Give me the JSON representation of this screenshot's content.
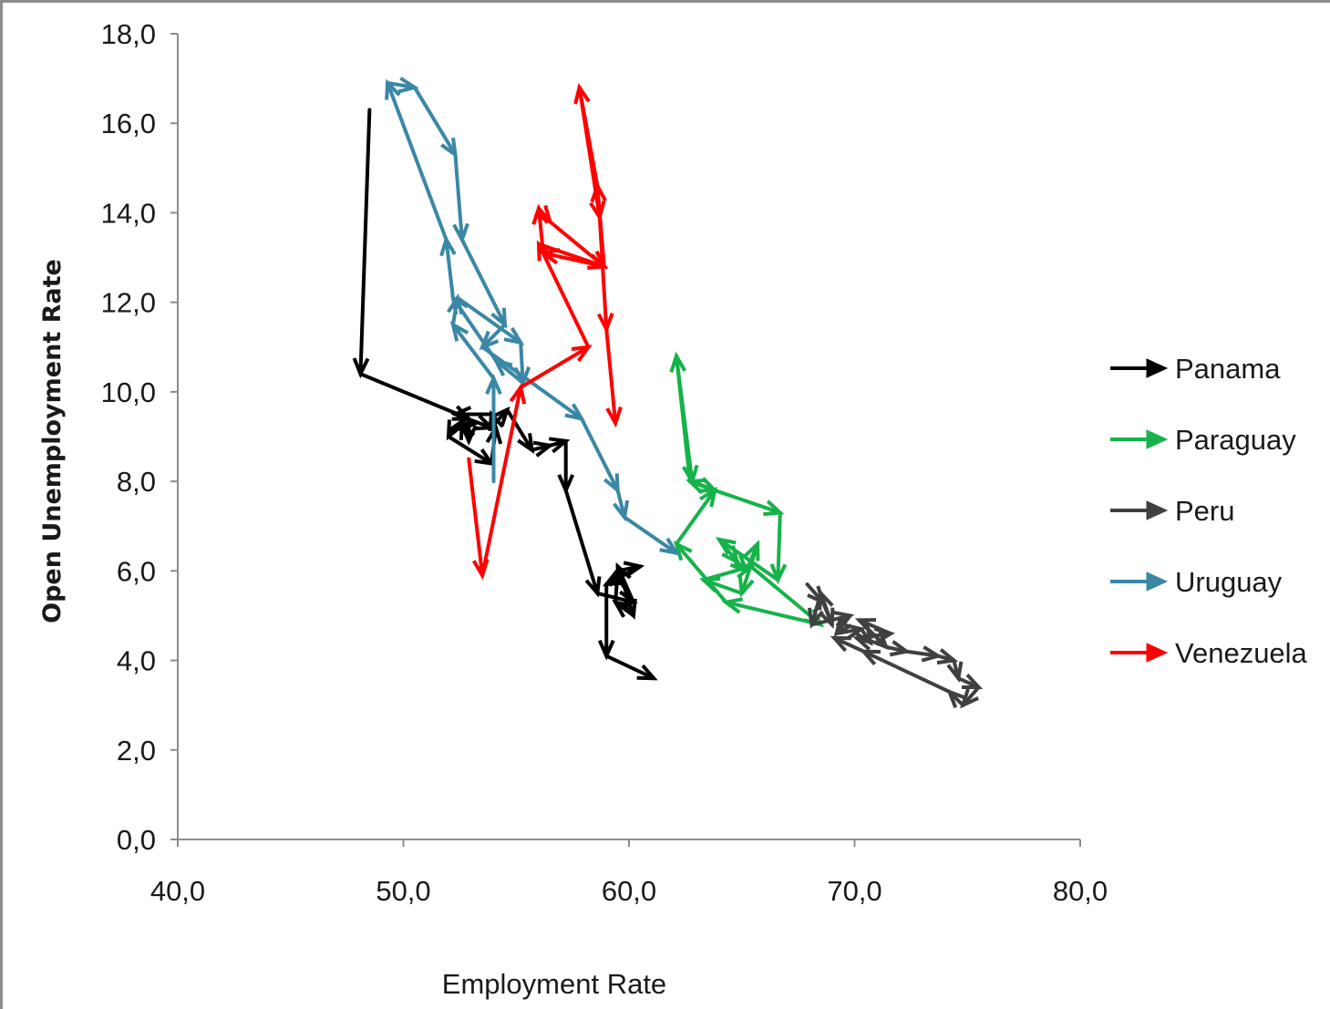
{
  "chart_data": {
    "type": "line",
    "xlabel": "Employment Rate",
    "ylabel": "Open Unemployment Rate",
    "xlim": [
      40,
      80
    ],
    "ylim": [
      0,
      18
    ],
    "x_ticks": [
      "40,0",
      "50,0",
      "60,0",
      "70,0",
      "80,0"
    ],
    "y_ticks": [
      "0,0",
      "2,0",
      "4,0",
      "6,0",
      "8,0",
      "10,0",
      "12,0",
      "14,0",
      "16,0",
      "18,0"
    ],
    "legend_position": "right",
    "series": [
      {
        "name": "Panama",
        "color": "#000000",
        "points": [
          [
            48.5,
            16.3
          ],
          [
            48.1,
            10.4
          ],
          [
            52.9,
            9.4
          ],
          [
            52.9,
            8.9
          ],
          [
            52.6,
            9.3
          ],
          [
            53.2,
            9.3
          ],
          [
            52.2,
            9.2
          ],
          [
            52.0,
            9.0
          ],
          [
            53.9,
            8.4
          ],
          [
            54.1,
            9.2
          ],
          [
            53.9,
            9.5
          ],
          [
            52.3,
            9.5
          ],
          [
            53.9,
            9.2
          ],
          [
            54.6,
            9.6
          ],
          [
            55.7,
            8.7
          ],
          [
            56.5,
            8.8
          ],
          [
            57.2,
            8.9
          ],
          [
            57.2,
            7.8
          ],
          [
            58.6,
            5.5
          ],
          [
            60.2,
            5.3
          ],
          [
            59.5,
            6.1
          ],
          [
            60.2,
            5.0
          ],
          [
            59.4,
            5.3
          ],
          [
            59.5,
            6.0
          ],
          [
            60.5,
            6.1
          ],
          [
            59.0,
            5.7
          ],
          [
            59.0,
            4.1
          ],
          [
            61.1,
            3.6
          ]
        ]
      },
      {
        "name": "Paraguay",
        "color": "#16b24a",
        "points": [
          [
            62.1,
            10.8
          ],
          [
            62.8,
            8.0
          ],
          [
            63.8,
            7.8
          ],
          [
            66.7,
            7.3
          ],
          [
            66.6,
            5.8
          ],
          [
            64.0,
            6.7
          ],
          [
            64.8,
            6.2
          ],
          [
            65.2,
            6.0
          ],
          [
            65.7,
            6.6
          ],
          [
            65.0,
            5.5
          ],
          [
            63.3,
            5.8
          ],
          [
            65.4,
            6.1
          ],
          [
            68.5,
            4.8
          ],
          [
            64.3,
            5.3
          ],
          [
            62.1,
            6.6
          ],
          [
            63.8,
            7.8
          ],
          [
            62.7,
            8.0
          ],
          [
            62.1,
            10.8
          ]
        ]
      },
      {
        "name": "Peru",
        "color": "#404040",
        "points": [
          [
            67.9,
            5.7
          ],
          [
            68.6,
            5.3
          ],
          [
            69.0,
            4.8
          ],
          [
            68.5,
            5.5
          ],
          [
            68.1,
            4.8
          ],
          [
            69.8,
            5.0
          ],
          [
            69.2,
            4.6
          ],
          [
            70.3,
            4.7
          ],
          [
            70.7,
            4.4
          ],
          [
            70.1,
            4.5
          ],
          [
            71.6,
            4.6
          ],
          [
            70.2,
            4.9
          ],
          [
            71.4,
            4.3
          ],
          [
            72.3,
            4.2
          ],
          [
            73.7,
            4.1
          ],
          [
            74.4,
            4.0
          ],
          [
            74.6,
            3.6
          ],
          [
            75.5,
            3.4
          ],
          [
            74.8,
            3.0
          ],
          [
            74.2,
            3.3
          ],
          [
            70.4,
            4.2
          ],
          [
            69.1,
            4.5
          ]
        ]
      },
      {
        "name": "Uruguay",
        "color": "#3a87a6",
        "points": [
          [
            54.0,
            8.0
          ],
          [
            54.0,
            10.3
          ],
          [
            52.2,
            11.5
          ],
          [
            52.4,
            12.1
          ],
          [
            55.2,
            11.1
          ],
          [
            55.3,
            10.2
          ],
          [
            54.1,
            10.7
          ],
          [
            52.2,
            12.1
          ],
          [
            51.9,
            13.4
          ],
          [
            49.3,
            16.9
          ],
          [
            50.5,
            16.8
          ],
          [
            52.3,
            15.3
          ],
          [
            52.6,
            13.4
          ],
          [
            54.5,
            11.5
          ],
          [
            53.5,
            11.0
          ],
          [
            57.9,
            9.4
          ],
          [
            59.5,
            7.8
          ],
          [
            59.8,
            7.2
          ],
          [
            62.1,
            6.4
          ]
        ]
      },
      {
        "name": "Venezuela",
        "color": "#ff0000",
        "points": [
          [
            52.9,
            8.5
          ],
          [
            53.5,
            5.9
          ],
          [
            55.2,
            10.1
          ],
          [
            58.2,
            11.0
          ],
          [
            56.0,
            13.3
          ],
          [
            58.9,
            12.8
          ],
          [
            56.2,
            13.1
          ],
          [
            56.0,
            14.1
          ],
          [
            56.5,
            13.8
          ],
          [
            58.9,
            12.8
          ],
          [
            58.6,
            14.6
          ],
          [
            57.8,
            16.8
          ],
          [
            58.7,
            13.9
          ],
          [
            59.0,
            11.4
          ],
          [
            59.4,
            9.3
          ]
        ]
      }
    ]
  }
}
